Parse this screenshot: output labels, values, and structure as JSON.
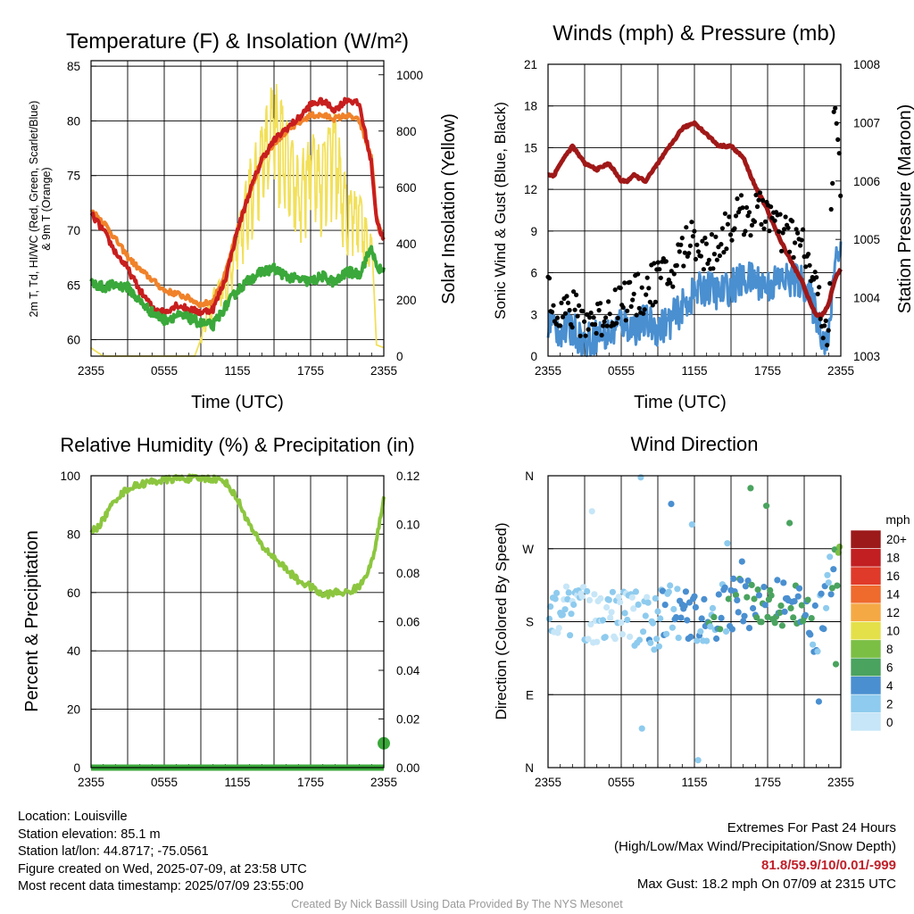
{
  "station": {
    "location": "Location: Louisville",
    "elevation": "Station elevation: 85.1 m",
    "latlon": "Station lat/lon: 44.8717; -75.0561",
    "created": "Figure created on Wed, 2025-07-09, at 23:58 UTC",
    "recent": "Most recent data timestamp: 2025/07/09 23:55:00"
  },
  "extremes": {
    "heading": "Extremes For Past 24 Hours",
    "fields": "(High/Low/Max Wind/Precipitation/Snow Depth)",
    "values": "81.8/59.9/10/0.01/-999",
    "max_gust": "Max Gust: 18.2 mph On 07/09 at 2315 UTC"
  },
  "credit": "Created By Nick Bassill Using Data Provided By The NYS Mesonet",
  "colors": {
    "temp": "#c81e1e",
    "dewpoint": "#3aa83a",
    "temp9m": "#f0822a",
    "solar": "#f2e05a",
    "wind": "#4a8fd0",
    "gust": "#000000",
    "pressure": "#a01818",
    "rh": "#8cc63f",
    "precip": "#3aa83a"
  },
  "chart_data": [
    {
      "type": "line",
      "title": "Temperature (F) & Insolation (W/m²)",
      "xlabel": "Time (UTC)",
      "ylabel": "2m T, Td, HI/WC (Red, Green, Scarlet/Blue) & 9m T (Orange)",
      "ylabel_lines": [
        "2m T, Td, HI/WC (Red, Green, Scarlet/Blue)",
        "& 9m T (Orange)"
      ],
      "ylabel_right": "Solar Insolation (Yellow)",
      "x_ticks": [
        "2355",
        "0555",
        "1155",
        "1755",
        "2355"
      ],
      "x_hours": [
        0,
        24
      ],
      "ylim": [
        58.5,
        85.5
      ],
      "y_ticks": [
        60,
        65,
        70,
        75,
        80,
        85
      ],
      "y2lim": [
        0,
        1050
      ],
      "y2_ticks": [
        0,
        200,
        400,
        600,
        800,
        1000
      ],
      "series": [
        {
          "name": "Solar Insolation",
          "axis": "right",
          "x": [
            0,
            0.3,
            1,
            3,
            6,
            7.5,
            8.5,
            9,
            9.5,
            10,
            11,
            12,
            13,
            14,
            15,
            16,
            17,
            18,
            19,
            20,
            21,
            22,
            23,
            23.4,
            24
          ],
          "y": [
            30,
            20,
            0,
            0,
            0,
            0,
            0,
            60,
            180,
            240,
            300,
            450,
            700,
            820,
            1000,
            850,
            700,
            800,
            760,
            880,
            600,
            580,
            420,
            40,
            30
          ]
        },
        {
          "name": "9m T",
          "x": [
            0,
            1,
            2,
            3,
            4,
            5,
            6,
            7,
            8,
            9,
            10,
            11,
            12,
            13,
            14,
            15,
            16,
            17,
            18,
            19,
            20,
            21,
            22,
            23,
            23.4,
            24
          ],
          "y": [
            71.8,
            70.8,
            69.2,
            67.6,
            66.4,
            65.5,
            64.5,
            64.2,
            63.8,
            63.2,
            63.5,
            66,
            70,
            73.5,
            76.5,
            78,
            79,
            79.8,
            80.5,
            80.5,
            80.2,
            80.5,
            80,
            76.5,
            71,
            69
          ]
        },
        {
          "name": "2m T",
          "x": [
            0,
            1,
            2,
            3,
            4,
            5,
            6,
            7,
            8,
            9,
            10,
            11,
            12,
            13,
            14,
            15,
            16,
            17,
            18,
            19,
            20,
            21,
            22,
            23,
            23.4,
            24
          ],
          "y": [
            71.5,
            70,
            68,
            66.5,
            64.5,
            63,
            62.5,
            63.2,
            62.8,
            62.5,
            62.8,
            65.5,
            70,
            73.5,
            76.5,
            78.2,
            79.3,
            80.2,
            81.5,
            81.8,
            81,
            82,
            81.5,
            76,
            71,
            69
          ]
        },
        {
          "name": "Td",
          "x": [
            0,
            1,
            2,
            3,
            4,
            5,
            6,
            7,
            8,
            9,
            10,
            11,
            12,
            13,
            14,
            15,
            16,
            17,
            18,
            19,
            20,
            21,
            22,
            23,
            23.4,
            24
          ],
          "y": [
            65.2,
            64.8,
            65,
            64.8,
            63.5,
            62.5,
            61.8,
            62.2,
            62,
            61.5,
            61.3,
            63,
            64.5,
            65.5,
            66.2,
            66.5,
            65.8,
            65.5,
            65.3,
            65.8,
            65.2,
            66.2,
            66,
            68.5,
            66.5,
            66.3
          ]
        }
      ]
    },
    {
      "type": "line",
      "title": "Winds (mph) & Pressure (mb)",
      "xlabel": "Time (UTC)",
      "ylabel": "Sonic Wind & Gust (Blue, Black)",
      "ylabel_right": "Station Pressure (Maroon)",
      "x_ticks": [
        "2355",
        "0555",
        "1155",
        "1755",
        "2355"
      ],
      "x_hours": [
        0,
        24
      ],
      "ylim": [
        0,
        21
      ],
      "y_ticks": [
        0,
        3,
        6,
        9,
        12,
        15,
        18,
        21
      ],
      "y2lim": [
        1003,
        1008
      ],
      "y2_ticks": [
        1003,
        1004,
        1005,
        1006,
        1007,
        1008
      ],
      "series": [
        {
          "name": "Sonic Wind",
          "x": [
            0,
            1,
            2,
            3,
            4,
            5,
            6,
            7,
            8,
            9,
            10,
            11,
            12,
            13,
            14,
            15,
            16,
            17,
            18,
            19,
            20,
            21,
            22,
            22.5,
            23,
            23.5,
            24
          ],
          "y": [
            2.5,
            1.8,
            2,
            1,
            1.5,
            1.5,
            2.5,
            2,
            2.5,
            2,
            2.5,
            3.5,
            4.5,
            5,
            4.5,
            5,
            5.5,
            5.5,
            5,
            5.5,
            5.5,
            5.2,
            3,
            1.5,
            1,
            7,
            8
          ]
        },
        {
          "name": "Gust",
          "x": [
            0,
            1,
            2,
            3,
            4,
            5,
            6,
            7,
            8,
            9,
            10,
            11,
            12,
            13,
            14,
            15,
            16,
            17,
            18,
            19,
            20,
            21,
            22,
            22.5,
            23,
            23.5,
            24
          ],
          "y": [
            4.5,
            2.5,
            2.5,
            2,
            2,
            2.5,
            3.5,
            3.5,
            4,
            5,
            5,
            7,
            8,
            6.5,
            7.5,
            9,
            9.5,
            9.5,
            10,
            8,
            8,
            7,
            4,
            2,
            1.5,
            18,
            11
          ]
        },
        {
          "name": "Station Pressure",
          "x": [
            0,
            0.5,
            1,
            2,
            3,
            4,
            5,
            6,
            6.5,
            7,
            8,
            9,
            10,
            11,
            12,
            13,
            14,
            15,
            16,
            17,
            18,
            19,
            20,
            21,
            21.5,
            22,
            22.5,
            23,
            23.5,
            24
          ],
          "y": [
            1006.1,
            1006.1,
            1006.3,
            1006.6,
            1006.3,
            1006.2,
            1006.3,
            1006.0,
            1006.0,
            1006.1,
            1006.0,
            1006.3,
            1006.6,
            1006.9,
            1007.0,
            1006.8,
            1006.6,
            1006.6,
            1006.4,
            1005.9,
            1005.5,
            1005.0,
            1004.6,
            1004.2,
            1003.9,
            1003.7,
            1003.7,
            1003.9,
            1004.3,
            1004.5
          ]
        }
      ]
    },
    {
      "type": "line",
      "title": "Relative Humidity (%) & Precipitation (in)",
      "ylabel": "Percent & Precipitation",
      "x_ticks": [
        "2355",
        "0555",
        "1155",
        "1755",
        "2355"
      ],
      "x_hours": [
        0,
        24
      ],
      "ylim": [
        0,
        100
      ],
      "y_ticks": [
        0,
        20,
        40,
        60,
        80,
        100
      ],
      "y2lim": [
        0,
        0.12
      ],
      "y2_ticks": [
        "0.00",
        "0.02",
        "0.04",
        "0.06",
        "0.08",
        "0.10",
        "0.12"
      ],
      "series": [
        {
          "name": "Relative Humidity",
          "x": [
            0,
            0.5,
            1,
            2,
            3,
            4,
            5,
            6,
            7,
            8,
            9,
            10,
            11,
            12,
            13,
            14,
            15,
            16,
            17,
            18,
            19,
            20,
            21,
            22,
            23,
            23.5,
            24
          ],
          "y": [
            81,
            82,
            85,
            92,
            95.5,
            97,
            98,
            98.5,
            99,
            99,
            99,
            99,
            98,
            92,
            83,
            76,
            72,
            68,
            64,
            62,
            59,
            60,
            60,
            62,
            70,
            80,
            92
          ]
        },
        {
          "name": "Precipitation",
          "axis": "right",
          "x": [
            0,
            23.9,
            24
          ],
          "y": [
            0,
            0,
            0.01
          ]
        }
      ]
    },
    {
      "type": "scatter",
      "title": "Wind Direction",
      "ylabel": "Direction (Colored By Speed)",
      "x_ticks": [
        "2355",
        "0555",
        "1155",
        "1755",
        "2355"
      ],
      "x_hours": [
        0,
        24
      ],
      "y_ticks": [
        "N",
        "E",
        "S",
        "W",
        "N"
      ],
      "ylim": [
        0,
        360
      ],
      "colorbar_title": "mph",
      "colorbar_labels": [
        "0",
        "2",
        "4",
        "6",
        "8",
        "10",
        "12",
        "14",
        "16",
        "18",
        "20+"
      ],
      "colorbar_colors": [
        "#c7e6f7",
        "#8ecbee",
        "#4a8fd0",
        "#4aa35f",
        "#7bbf45",
        "#e3e04a",
        "#f5a945",
        "#ef6a2d",
        "#e03a2a",
        "#c11f22",
        "#9c1a1a"
      ]
    }
  ]
}
